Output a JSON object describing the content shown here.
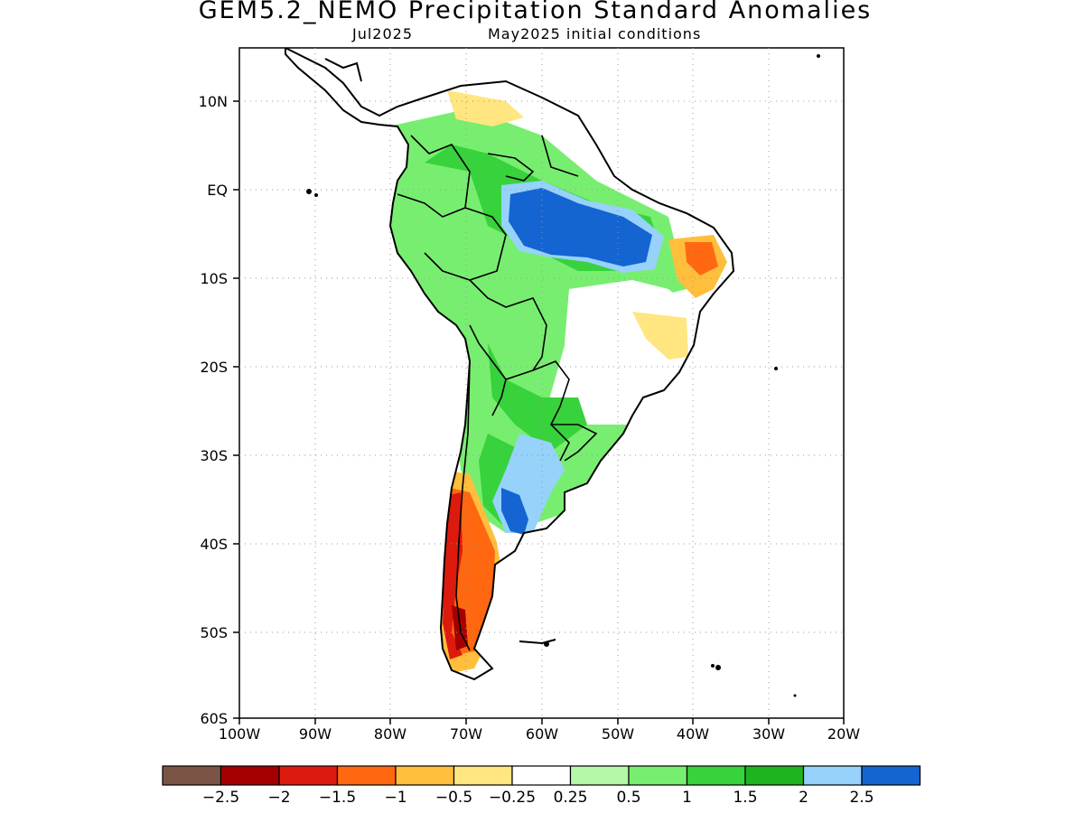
{
  "title": "GEM5.2_NEMO Precipitation Standard Anomalies",
  "subtitle_left": "Jul2025",
  "subtitle_right": "May2025 initial conditions",
  "lat_labels": [
    "10N",
    "EQ",
    "10S",
    "20S",
    "30S",
    "40S",
    "50S",
    "60S"
  ],
  "lon_labels": [
    "100W",
    "90W",
    "80W",
    "70W",
    "60W",
    "50W",
    "40W",
    "30W",
    "20W"
  ],
  "colorbar": {
    "colors": [
      "#7a5545",
      "#a40000",
      "#dd1a0e",
      "#ff6810",
      "#ffbe3c",
      "#ffe680",
      "#ffffff",
      "#b4f8a8",
      "#78ee70",
      "#37d23c",
      "#1eb41e",
      "#96d2fa",
      "#1464d2"
    ],
    "labels": [
      "−2.5",
      "−2",
      "−1.5",
      "−1",
      "−0.5",
      "−0.25",
      "0.25",
      "0.5",
      "1",
      "1.5",
      "2",
      "2.5"
    ]
  },
  "legend_ranges": {
    "strong_negative": "#dd1a0e",
    "moderate_negative": "#ff6810",
    "weak_negative": "#ffbe3c",
    "slight_negative": "#ffe680",
    "slight_positive": "#b4f8a8",
    "weak_positive": "#78ee70",
    "moderate_positive": "#37d23c",
    "strong_positive": "#1eb41e",
    "very_strong_positive": "#96d2fa",
    "extreme_positive": "#1464d2"
  }
}
